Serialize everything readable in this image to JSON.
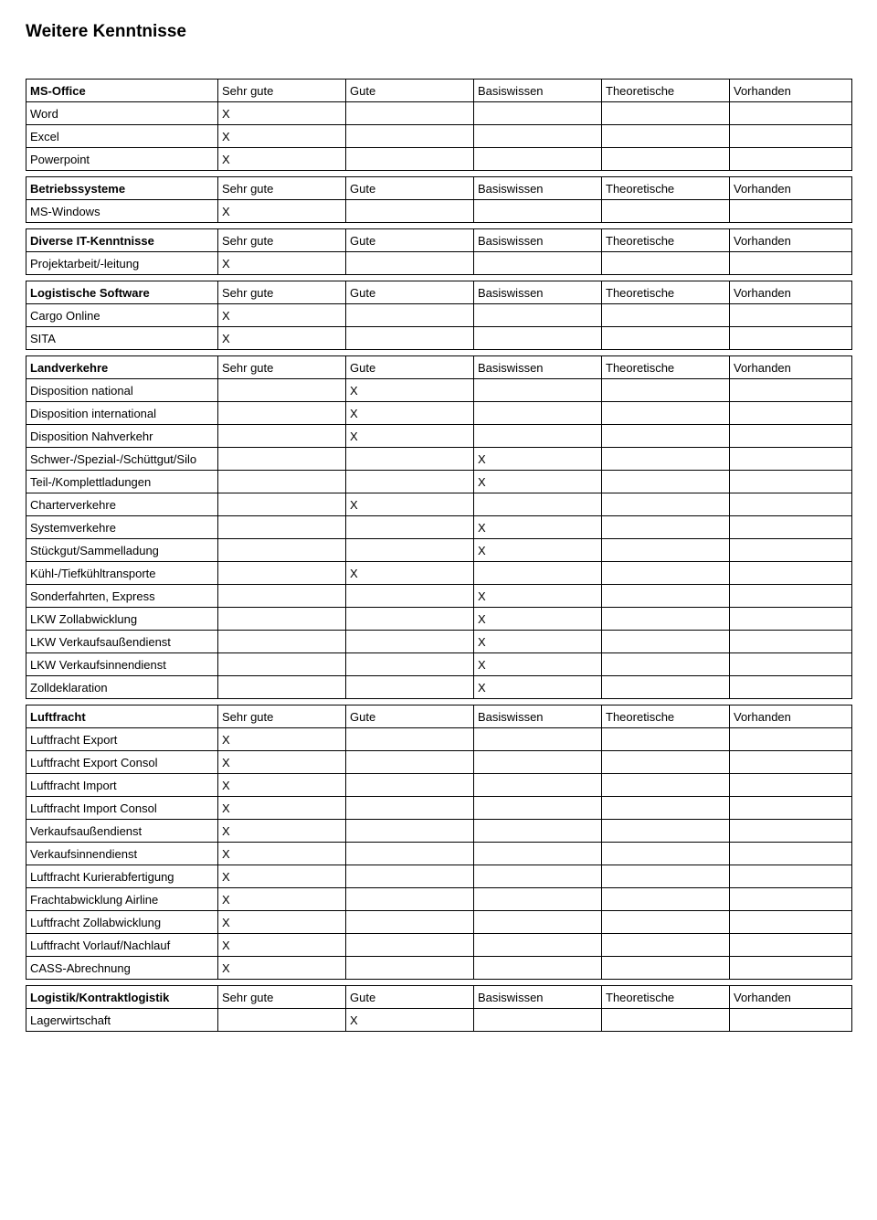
{
  "title": "Weitere Kenntnisse",
  "rating_labels": [
    "Sehr gute",
    "Gute",
    "Basiswissen",
    "Theoretische",
    "Vorhanden"
  ],
  "sections": [
    {
      "header": "MS-Office",
      "rows": [
        {
          "label": "Word",
          "mark": 0
        },
        {
          "label": "Excel",
          "mark": 0
        },
        {
          "label": "Powerpoint",
          "mark": 0
        }
      ]
    },
    {
      "header": "Betriebssysteme",
      "rows": [
        {
          "label": "MS-Windows",
          "mark": 0
        }
      ]
    },
    {
      "header": "Diverse IT-Kenntnisse",
      "rows": [
        {
          "label": "Projektarbeit/-leitung",
          "mark": 0
        }
      ]
    },
    {
      "header": "Logistische Software",
      "rows": [
        {
          "label": "Cargo Online",
          "mark": 0
        },
        {
          "label": "SITA",
          "mark": 0
        }
      ]
    },
    {
      "header": "Landverkehre",
      "rows": [
        {
          "label": "Disposition national",
          "mark": 1
        },
        {
          "label": "Disposition international",
          "mark": 1
        },
        {
          "label": "Disposition Nahverkehr",
          "mark": 1
        },
        {
          "label": "Schwer-/Spezial-/Schüttgut/Silo",
          "mark": 2
        },
        {
          "label": "Teil-/Komplettladungen",
          "mark": 2
        },
        {
          "label": "Charterverkehre",
          "mark": 1
        },
        {
          "label": "Systemverkehre",
          "mark": 2
        },
        {
          "label": "Stückgut/Sammelladung",
          "mark": 2
        },
        {
          "label": "Kühl-/Tiefkühltransporte",
          "mark": 1
        },
        {
          "label": "Sonderfahrten, Express",
          "mark": 2
        },
        {
          "label": "LKW Zollabwicklung",
          "mark": 2
        },
        {
          "label": "LKW Verkaufsaußendienst",
          "mark": 2
        },
        {
          "label": "LKW Verkaufsinnendienst",
          "mark": 2
        },
        {
          "label": "Zolldeklaration",
          "mark": 2
        }
      ]
    },
    {
      "header": "Luftfracht",
      "rows": [
        {
          "label": "Luftfracht Export",
          "mark": 0
        },
        {
          "label": "Luftfracht Export Consol",
          "mark": 0
        },
        {
          "label": "Luftfracht Import",
          "mark": 0
        },
        {
          "label": "Luftfracht Import Consol",
          "mark": 0
        },
        {
          "label": "Verkaufsaußendienst",
          "mark": 0
        },
        {
          "label": "Verkaufsinnendienst",
          "mark": 0
        },
        {
          "label": "Luftfracht Kurierabfertigung",
          "mark": 0
        },
        {
          "label": "Frachtabwicklung Airline",
          "mark": 0
        },
        {
          "label": "Luftfracht Zollabwicklung",
          "mark": 0
        },
        {
          "label": "Luftfracht Vorlauf/Nachlauf",
          "mark": 0
        },
        {
          "label": "CASS-Abrechnung",
          "mark": 0
        }
      ]
    },
    {
      "header": "Logistik/Kontraktlogistik",
      "rows": [
        {
          "label": "Lagerwirtschaft",
          "mark": 1
        }
      ]
    }
  ],
  "mark_symbol": "X"
}
